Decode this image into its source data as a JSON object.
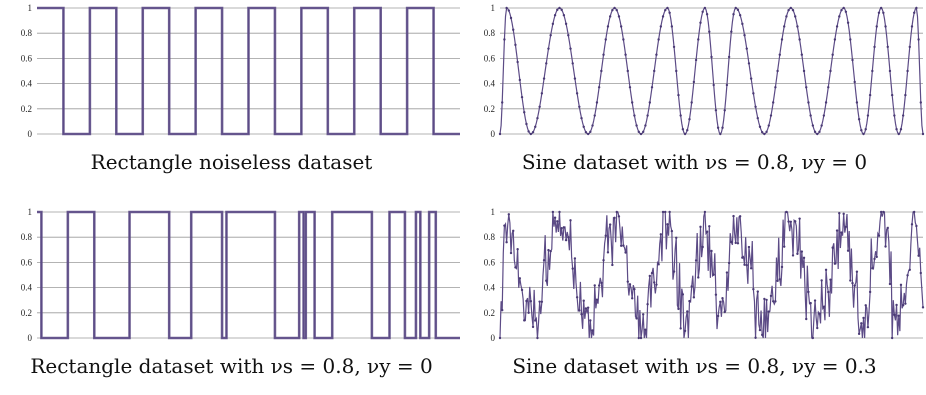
{
  "chart_data": [
    {
      "type": "line",
      "caption": "Rectangle noiseless dataset",
      "ylim": [
        0,
        1
      ],
      "yticks": [
        "0",
        "0.2",
        "0.4",
        "0.6",
        "0.8",
        "1"
      ],
      "grid": true,
      "color": "#5c4b86",
      "markers": false,
      "n_points": 384,
      "segments": [
        [
          0,
          1
        ],
        [
          24,
          0
        ],
        [
          48,
          1
        ],
        [
          72,
          0
        ],
        [
          96,
          1
        ],
        [
          120,
          0
        ],
        [
          144,
          1
        ],
        [
          168,
          0
        ],
        [
          192,
          1
        ],
        [
          216,
          0
        ],
        [
          240,
          1
        ],
        [
          264,
          0
        ],
        [
          288,
          1
        ],
        [
          312,
          0
        ],
        [
          336,
          1
        ],
        [
          360,
          0
        ]
      ]
    },
    {
      "type": "line",
      "caption": "Sine dataset with νs = 0.8, νy = 0",
      "ylim": [
        0,
        1
      ],
      "yticks": [
        "0",
        "0.2",
        "0.4",
        "0.6",
        "0.8",
        "1"
      ],
      "grid": true,
      "color": "#5c4b86",
      "markers": true,
      "n_points": 384,
      "peaks": [
        6,
        54,
        104,
        152,
        186,
        214,
        264,
        312,
        346,
        378
      ],
      "troughs": [
        0,
        28,
        80,
        128,
        168,
        200,
        240,
        288,
        330,
        362,
        384
      ]
    },
    {
      "type": "line",
      "caption": "Rectangle dataset with νs = 0.8, νy = 0",
      "ylim": [
        0,
        1
      ],
      "yticks": [
        "0",
        "0.2",
        "0.4",
        "0.6",
        "0.8",
        "1"
      ],
      "grid": true,
      "color": "#5c4b86",
      "markers": false,
      "n_points": 384,
      "segments": [
        [
          0,
          1
        ],
        [
          4,
          0
        ],
        [
          28,
          1
        ],
        [
          52,
          0
        ],
        [
          84,
          1
        ],
        [
          120,
          0
        ],
        [
          140,
          1
        ],
        [
          168,
          0
        ],
        [
          172,
          1
        ],
        [
          216,
          0
        ],
        [
          238,
          1
        ],
        [
          242,
          0
        ],
        [
          244,
          1
        ],
        [
          252,
          0
        ],
        [
          268,
          1
        ],
        [
          304,
          0
        ],
        [
          320,
          1
        ],
        [
          334,
          0
        ],
        [
          344,
          1
        ],
        [
          348,
          0
        ],
        [
          356,
          1
        ],
        [
          362,
          0
        ]
      ]
    },
    {
      "type": "line",
      "caption": "Sine dataset with νs = 0.8, νy = 0.3",
      "ylim": [
        0,
        1
      ],
      "yticks": [
        "0",
        "0.2",
        "0.4",
        "0.6",
        "0.8",
        "1"
      ],
      "grid": true,
      "color": "#5c4b86",
      "markers": true,
      "n_points": 384,
      "noise": 0.3,
      "peaks": [
        6,
        54,
        104,
        152,
        186,
        214,
        264,
        312,
        346,
        378
      ],
      "troughs": [
        0,
        28,
        80,
        128,
        168,
        200,
        240,
        288,
        330,
        362,
        384
      ]
    }
  ]
}
